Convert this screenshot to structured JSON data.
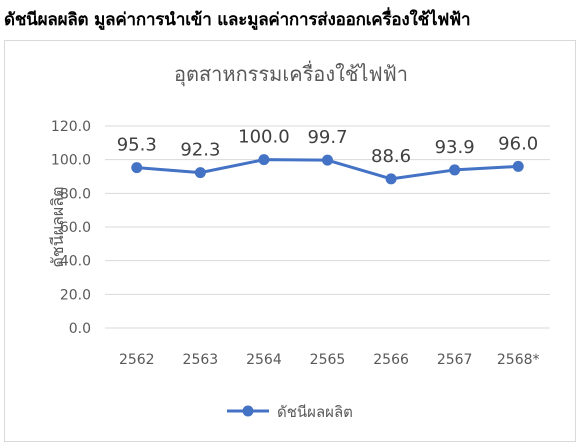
{
  "page_heading": "ดัชนีผลผลิต มูลค่าการนำเข้า และมูลค่าการส่งออกเครื่องใช้ไฟฟ้า",
  "chart_data": {
    "type": "line",
    "title": "อุตสาหกรรมเครื่องใช้ไฟฟ้า",
    "xlabel": "",
    "ylabel": "ดัชนีผลผลิต",
    "categories": [
      "2562",
      "2563",
      "2564",
      "2565",
      "2566",
      "2567",
      "2568*"
    ],
    "series": [
      {
        "name": "ดัชนีผลผลิต",
        "values": [
          95.3,
          92.3,
          100.0,
          99.7,
          88.6,
          93.9,
          96.0
        ],
        "data_labels": [
          "95.3",
          "92.3",
          "100.0",
          "99.7",
          "88.6",
          "93.9",
          "96.0"
        ],
        "color": "#4472c4"
      }
    ],
    "ylim": [
      0,
      120
    ],
    "yticks": [
      "0.0",
      "20.0",
      "40.0",
      "60.0",
      "80.0",
      "100.0",
      "120.0"
    ],
    "grid": true,
    "legend_position": "bottom"
  },
  "colors": {
    "line": "#4472c4",
    "grid": "#d9d9d9",
    "axis_text": "#595959",
    "title_text": "#595959",
    "label_text": "#404040"
  }
}
